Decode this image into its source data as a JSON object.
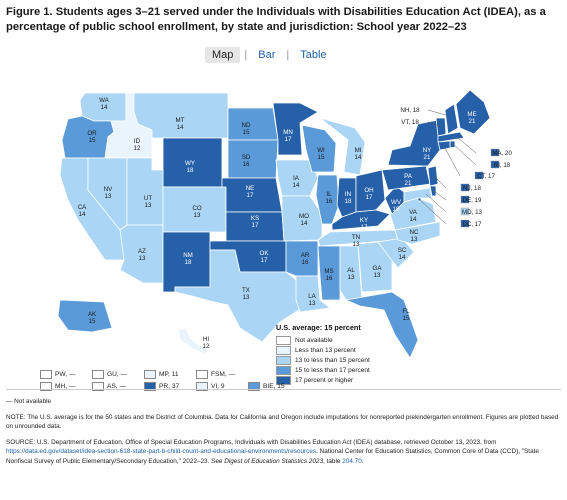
{
  "title": "Figure 1. Students ages 3–21 served under the Individuals with Disabilities Education Act (IDEA), as a percentage of public school enrollment, by state and jurisdiction: School year 2022–23",
  "tabs": [
    "Map",
    "Bar",
    "Table"
  ],
  "tab_separator": "|",
  "colors": {
    "not_available": "#ffffff",
    "lt13": "#eaf4fc",
    "13to15": "#aad5f5",
    "15to17": "#5b9ad8",
    "ge17": "#2660a8"
  },
  "legend": {
    "title": "U.S. average: 15 percent",
    "items": [
      {
        "label": "Not available",
        "color": "#ffffff"
      },
      {
        "label": "Less than 13 percent",
        "color": "#eaf4fc"
      },
      {
        "label": "13 to less than 15 percent",
        "color": "#aad5f5"
      },
      {
        "label": "15 to less than 17 percent",
        "color": "#5b9ad8"
      },
      {
        "label": "17 percent or higher",
        "color": "#2660a8"
      }
    ]
  },
  "states": [
    {
      "abbr": "WA",
      "value": "14"
    },
    {
      "abbr": "OR",
      "value": "15"
    },
    {
      "abbr": "CA",
      "value": "14"
    },
    {
      "abbr": "ID",
      "value": "12"
    },
    {
      "abbr": "NV",
      "value": "13"
    },
    {
      "abbr": "MT",
      "value": "14"
    },
    {
      "abbr": "WY",
      "value": "18"
    },
    {
      "abbr": "UT",
      "value": "13"
    },
    {
      "abbr": "AZ",
      "value": "13"
    },
    {
      "abbr": "CO",
      "value": "13"
    },
    {
      "abbr": "NM",
      "value": "18"
    },
    {
      "abbr": "ND",
      "value": "15"
    },
    {
      "abbr": "SD",
      "value": "16"
    },
    {
      "abbr": "NE",
      "value": "17"
    },
    {
      "abbr": "KS",
      "value": "17"
    },
    {
      "abbr": "OK",
      "value": "17"
    },
    {
      "abbr": "TX",
      "value": "13"
    },
    {
      "abbr": "MN",
      "value": "17"
    },
    {
      "abbr": "IA",
      "value": "14"
    },
    {
      "abbr": "MO",
      "value": "14"
    },
    {
      "abbr": "AR",
      "value": "16"
    },
    {
      "abbr": "LA",
      "value": "13"
    },
    {
      "abbr": "WI",
      "value": "15"
    },
    {
      "abbr": "IL",
      "value": "16"
    },
    {
      "abbr": "MI",
      "value": "14"
    },
    {
      "abbr": "IN",
      "value": "18"
    },
    {
      "abbr": "OH",
      "value": "17"
    },
    {
      "abbr": "KY",
      "value": "17"
    },
    {
      "abbr": "TN",
      "value": "13"
    },
    {
      "abbr": "MS",
      "value": "16"
    },
    {
      "abbr": "AL",
      "value": "13"
    },
    {
      "abbr": "GA",
      "value": "13"
    },
    {
      "abbr": "FL",
      "value": "15"
    },
    {
      "abbr": "SC",
      "value": "14"
    },
    {
      "abbr": "NC",
      "value": "13"
    },
    {
      "abbr": "VA",
      "value": "14"
    },
    {
      "abbr": "WV",
      "value": "19"
    },
    {
      "abbr": "PA",
      "value": "21"
    },
    {
      "abbr": "NY",
      "value": "21"
    },
    {
      "abbr": "ME",
      "value": "21"
    },
    {
      "abbr": "AK",
      "value": "15"
    },
    {
      "abbr": "HI",
      "value": "12"
    }
  ],
  "callouts": [
    {
      "abbr": "NH",
      "value": "18"
    },
    {
      "abbr": "VT",
      "value": "18"
    },
    {
      "abbr": "MA",
      "value": "20"
    },
    {
      "abbr": "RI",
      "value": "18"
    },
    {
      "abbr": "CT",
      "value": "17"
    },
    {
      "abbr": "NJ",
      "value": "18"
    },
    {
      "abbr": "DE",
      "value": "19"
    },
    {
      "abbr": "MD",
      "value": "13"
    },
    {
      "abbr": "DC",
      "value": "17"
    }
  ],
  "territories": [
    [
      {
        "abbr": "PW",
        "value": "—",
        "color": "#ffffff"
      },
      {
        "abbr": "GU",
        "value": "—",
        "color": "#ffffff"
      },
      {
        "abbr": "MP",
        "value": "11",
        "color": "#eaf4fc"
      },
      {
        "abbr": "FSM",
        "value": "—",
        "color": "#ffffff"
      }
    ],
    [
      {
        "abbr": "MH",
        "value": "—",
        "color": "#ffffff"
      },
      {
        "abbr": "AS",
        "value": "—",
        "color": "#ffffff"
      },
      {
        "abbr": "PR",
        "value": "37",
        "color": "#2660a8"
      },
      {
        "abbr": "VI",
        "value": "9",
        "color": "#eaf4fc"
      },
      {
        "abbr": "BIE",
        "value": "15",
        "color": "#5b9ad8"
      }
    ]
  ],
  "notes": {
    "not_available": "— Not available",
    "note": "NOTE: The U.S. average is for the 50 states and the District of Columbia. Data for California and Oregon include imputations for nonreported prekindergarten enrollment. Figures are plotted based on unrounded data.",
    "source_a": "SOURCE: U.S. Department of Education, Office of Special Education Programs, Individuals with Disabilities Education Act (IDEA) database, retrieved October 13, 2023, from",
    "source_link": "https://data.ed.gov/dataset/idea-section-618-state-part-b-child-count-and-educational-environments/resources",
    "source_b": ". National Center for Education Statistics, Common Core of Data (CCD), \"State Nonfiscal Survey of Public Elementary/Secondary Education,\" 2022–23. See",
    "source_digest": "Digest of Education Statistics 2023",
    "source_c": ", table",
    "source_table": "204.70",
    "source_end": "."
  }
}
